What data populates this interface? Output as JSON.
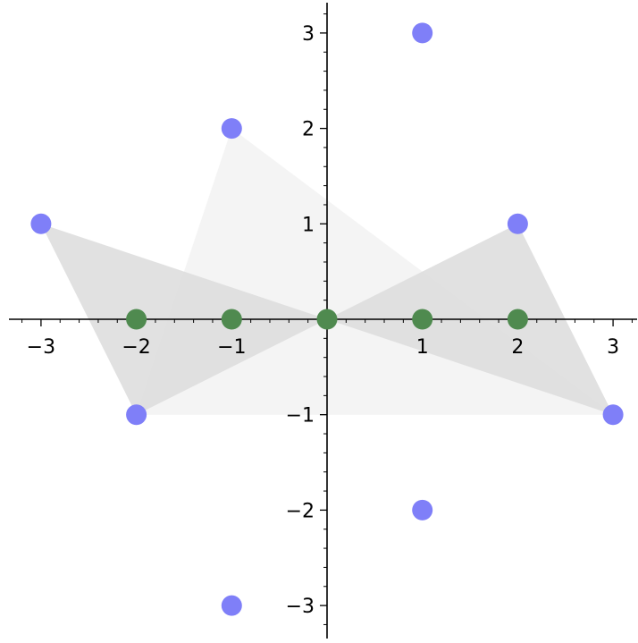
{
  "chart_data": {
    "type": "scatter",
    "title": "",
    "xlabel": "",
    "ylabel": "",
    "xlim": [
      -3.3,
      3.3
    ],
    "ylim": [
      -3.3,
      3.3
    ],
    "grid": false,
    "x_ticks": [
      {
        "value": -3,
        "label": "−3"
      },
      {
        "value": -2,
        "label": "−2"
      },
      {
        "value": -1,
        "label": "−1"
      },
      {
        "value": 1,
        "label": "1"
      },
      {
        "value": 2,
        "label": "2"
      },
      {
        "value": 3,
        "label": "3"
      }
    ],
    "y_ticks": [
      {
        "value": -3,
        "label": "−3"
      },
      {
        "value": -2,
        "label": "−2"
      },
      {
        "value": -1,
        "label": "−1"
      },
      {
        "value": 1,
        "label": "1"
      },
      {
        "value": 2,
        "label": "2"
      },
      {
        "value": 3,
        "label": "3"
      }
    ],
    "polygons": [
      {
        "vertices": [
          [
            -1,
            2
          ],
          [
            -2,
            -1
          ],
          [
            3,
            -1
          ]
        ],
        "color": "#f2f2f2"
      },
      {
        "vertices": [
          [
            -3,
            1
          ],
          [
            -2,
            -1
          ],
          [
            0,
            0
          ]
        ],
        "color": "#dcdcdc"
      },
      {
        "vertices": [
          [
            0,
            0
          ],
          [
            2,
            1
          ],
          [
            3,
            -1
          ]
        ],
        "color": "#dcdcdc"
      }
    ],
    "series": [
      {
        "color": "#7f7ff8",
        "points": [
          [
            1,
            3
          ],
          [
            -1,
            2
          ],
          [
            -3,
            1
          ],
          [
            2,
            1
          ],
          [
            -2,
            -1
          ],
          [
            3,
            -1
          ],
          [
            1,
            -2
          ],
          [
            -1,
            -3
          ]
        ]
      },
      {
        "color": "#4f8a4f",
        "points": [
          [
            -2,
            0
          ],
          [
            -1,
            0
          ],
          [
            0,
            0
          ],
          [
            1,
            0
          ],
          [
            2,
            0
          ]
        ]
      }
    ]
  }
}
